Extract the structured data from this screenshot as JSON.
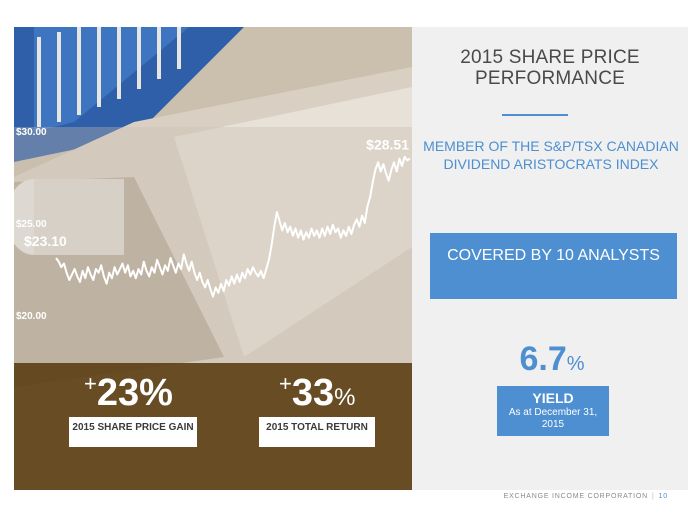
{
  "chart_data": {
    "type": "line",
    "title": "",
    "xlabel": "",
    "ylabel": "",
    "ylim": [
      20,
      30
    ],
    "yticks": [
      20,
      25,
      30
    ],
    "ytick_labels": [
      "$20.00",
      "$25.00",
      "$30.00"
    ],
    "annotations": [
      {
        "text": "$23.10",
        "value": 23.1
      },
      {
        "text": "$28.51",
        "value": 28.51
      }
    ],
    "series": [
      {
        "values": [
          23.1,
          22.9,
          22.6,
          22.8,
          22.3,
          21.9,
          22.2,
          22.5,
          22.1,
          21.8,
          22.4,
          22.0,
          22.6,
          22.2,
          21.9,
          22.5,
          22.3,
          22.7,
          22.1,
          21.7,
          22.3,
          22.0,
          22.6,
          22.2,
          22.5,
          22.8,
          22.3,
          22.7,
          22.1,
          22.4,
          22.0,
          22.5,
          22.2,
          22.9,
          22.4,
          22.1,
          22.6,
          22.3,
          23.0,
          22.6,
          22.2,
          22.7,
          22.4,
          23.1,
          22.7,
          22.3,
          22.8,
          22.5,
          23.3,
          22.8,
          22.4,
          22.9,
          22.3,
          21.9,
          22.3,
          21.8,
          21.5,
          21.9,
          21.4,
          21.0,
          21.5,
          21.2,
          21.7,
          21.3,
          21.9,
          21.6,
          22.1,
          21.7,
          22.2,
          21.8,
          22.3,
          22.0,
          22.5,
          22.2,
          22.6,
          22.3,
          22.1,
          22.4,
          22.0,
          22.5,
          23.0,
          23.8,
          24.8,
          25.6,
          25.1,
          24.6,
          25.0,
          24.5,
          24.8,
          24.3,
          24.7,
          24.2,
          24.6,
          24.1,
          24.5,
          24.2,
          24.7,
          24.3,
          24.6,
          24.2,
          24.7,
          24.3,
          24.8,
          24.4,
          24.9,
          24.5,
          24.7,
          24.2,
          24.6,
          24.3,
          24.8,
          24.4,
          24.9,
          25.2,
          24.8,
          25.4,
          25.0,
          25.9,
          26.4,
          27.2,
          27.9,
          28.3,
          27.8,
          28.2,
          27.7,
          27.3,
          27.9,
          28.3,
          27.8,
          28.5,
          28.1,
          28.6,
          28.4,
          28.51
        ]
      }
    ],
    "grid": false,
    "legend": "none"
  },
  "stats": {
    "gain": {
      "sign": "+",
      "value": "23%",
      "label": "2015 SHARE PRICE GAIN"
    },
    "return": {
      "sign": "+",
      "number": "33",
      "unit": "%",
      "label": "2015 TOTAL RETURN"
    }
  },
  "right": {
    "title": "2015 SHARE PRICE PERFORMANCE",
    "member": "MEMBER OF THE S&P/TSX CANADIAN DIVIDEND ARISTOCRATS INDEX",
    "covered": "COVERED BY 10 ANALYSTS",
    "yield_number": "6.7",
    "yield_unit": "%",
    "yield_label": "YIELD",
    "yield_sub": "As at December 31, 2015"
  },
  "footer": {
    "company": "EXCHANGE INCOME CORPORATION",
    "page": "10"
  },
  "colors": {
    "accent": "#4d8fd0",
    "band": "#5e4218",
    "panel": "#f0f0f0"
  }
}
